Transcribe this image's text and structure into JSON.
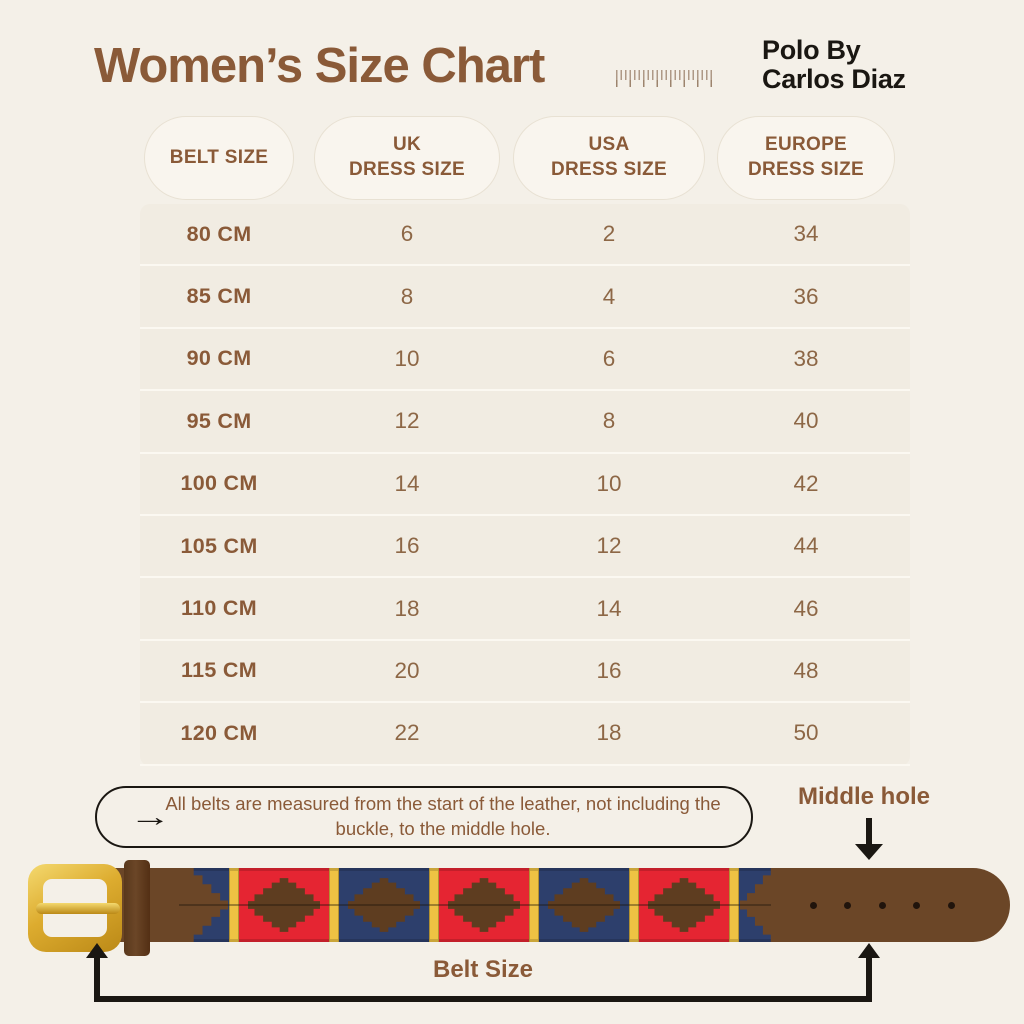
{
  "header": {
    "title": "Women’s Size Chart",
    "brand_line1": "Polo By",
    "brand_line2": "Carlos Diaz"
  },
  "table": {
    "headers": [
      {
        "top": "BELT SIZE",
        "bottom": ""
      },
      {
        "top": "UK",
        "bottom": "DRESS SIZE"
      },
      {
        "top": "USA",
        "bottom": "DRESS SIZE"
      },
      {
        "top": "EUROPE",
        "bottom": "DRESS SIZE"
      }
    ]
  },
  "chart_data": {
    "type": "table",
    "title": "Women’s Size Chart",
    "columns": [
      "BELT SIZE",
      "UK DRESS SIZE",
      "USA DRESS SIZE",
      "EUROPE DRESS SIZE"
    ],
    "rows": [
      [
        "80 CM",
        "6",
        "2",
        "34"
      ],
      [
        "85 CM",
        "8",
        "4",
        "36"
      ],
      [
        "90 CM",
        "10",
        "6",
        "38"
      ],
      [
        "95 CM",
        "12",
        "8",
        "40"
      ],
      [
        "100 CM",
        "14",
        "10",
        "42"
      ],
      [
        "105 CM",
        "16",
        "12",
        "44"
      ],
      [
        "110 CM",
        "18",
        "14",
        "46"
      ],
      [
        "115 CM",
        "20",
        "16",
        "48"
      ],
      [
        "120 CM",
        "22",
        "18",
        "50"
      ]
    ]
  },
  "note": {
    "arrow_icon": "→",
    "text": "All belts are measured from the start of the leather, not including the buckle, to the middle hole."
  },
  "diagram": {
    "middle_hole_label": "Middle hole",
    "belt_size_label": "Belt Size"
  },
  "theme": {
    "bg": "#f4f0e8",
    "panel": "#f1ece2",
    "pill_bg": "#f9f5ee",
    "pill_border": "#e8e1d3",
    "divider": "#fbf8f1",
    "brown": "#8a5a38",
    "brown_value": "#8d6746",
    "ink": "#1a1712"
  },
  "belt_colors": {
    "leather": "#6b4627",
    "leather_dark": "#59381c",
    "navy": "#2d3f6c",
    "red": "#e52532",
    "yellow": "#eec243",
    "diamond": "#5e3d20",
    "gold": "#ddac2f",
    "gold_light": "#f4d96f",
    "gold_dark": "#bb8917",
    "hole": "#20140c",
    "stitch": "rgba(30,20,10,0.38)"
  }
}
